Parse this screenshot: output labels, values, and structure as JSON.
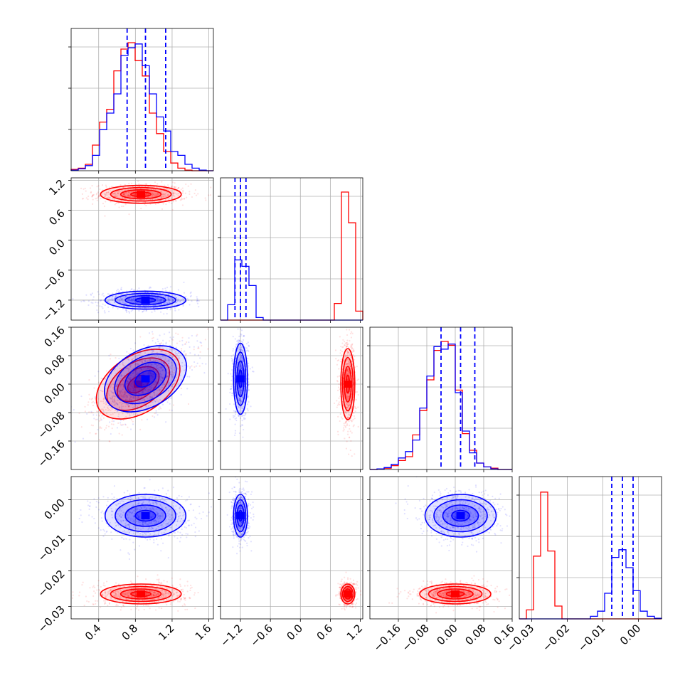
{
  "chart_data": {
    "type": "corner",
    "title": "",
    "series": [
      {
        "name": "",
        "color": "#ff0000"
      },
      {
        "name": "",
        "color": "#0000ff"
      }
    ],
    "quantile_line_color": "#0000ff",
    "grid": true,
    "parameters": [
      {
        "range": [
          0.1,
          1.65
        ],
        "ticks": [
          "0.4",
          "0.8",
          "1.2",
          "1.6"
        ],
        "tick_values": [
          0.4,
          0.8,
          1.2,
          1.6
        ]
      },
      {
        "range": [
          -1.6,
          1.25
        ],
        "ticks": [
          "−1.2",
          "−0.6",
          "0.0",
          "0.6",
          "1.2"
        ],
        "tick_values": [
          -1.2,
          -0.6,
          0.0,
          0.6,
          1.2
        ]
      },
      {
        "range": [
          -0.24,
          0.16
        ],
        "ticks": [
          "−0.16",
          "−0.08",
          "0.00",
          "0.08",
          "0.16"
        ],
        "tick_values": [
          -0.16,
          -0.08,
          0.0,
          0.08,
          0.16
        ]
      },
      {
        "range": [
          -0.0335,
          0.0065
        ],
        "ticks": [
          "−0.03",
          "−0.02",
          "−0.01",
          "0.00"
        ],
        "tick_values": [
          -0.03,
          -0.02,
          -0.01,
          0.0
        ]
      }
    ],
    "quantiles": [
      [
        0.71,
        0.91,
        1.13
      ],
      [
        -1.31,
        -1.2,
        -1.09
      ],
      [
        -0.04,
        0.015,
        0.055
      ],
      [
        -0.0075,
        -0.0045,
        -0.0015
      ]
    ],
    "histograms": [
      {
        "bins": [
          0.1,
          1.65,
          20
        ],
        "red": [
          0.01,
          0.02,
          0.05,
          0.2,
          0.38,
          0.48,
          0.78,
          0.95,
          1.0,
          0.86,
          0.74,
          0.45,
          0.29,
          0.15,
          0.06,
          0.02,
          0.005,
          0,
          0,
          0
        ],
        "blue": [
          0.005,
          0.015,
          0.04,
          0.12,
          0.32,
          0.45,
          0.6,
          0.9,
          0.96,
          0.99,
          0.82,
          0.6,
          0.42,
          0.31,
          0.15,
          0.12,
          0.05,
          0.02,
          0.005,
          0
        ]
      },
      {
        "bins": [
          -1.6,
          1.25,
          20
        ],
        "red": [
          0,
          0,
          0,
          0,
          0,
          0,
          0,
          0,
          0,
          0,
          0,
          0,
          0,
          0,
          0,
          0,
          0.13,
          1.0,
          0.76,
          0.07
        ],
        "blue": [
          0,
          0.12,
          0.47,
          0.42,
          0.27,
          0.02,
          0,
          0,
          0,
          0,
          0,
          0,
          0,
          0,
          0,
          0,
          0,
          0,
          0,
          0
        ]
      },
      {
        "bins": [
          -0.24,
          0.16,
          20
        ],
        "red": [
          0,
          0.005,
          0.01,
          0.03,
          0.07,
          0.1,
          0.27,
          0.46,
          0.7,
          0.93,
          1.0,
          0.97,
          0.62,
          0.28,
          0.15,
          0.05,
          0.02,
          0.01,
          0,
          0
        ],
        "blue": [
          0,
          0.005,
          0.015,
          0.04,
          0.09,
          0.14,
          0.23,
          0.48,
          0.73,
          0.96,
          0.94,
          0.98,
          0.6,
          0.3,
          0.13,
          0.05,
          0.02,
          0.005,
          0,
          0
        ]
      },
      {
        "bins": [
          -0.0335,
          0.0065,
          20
        ],
        "red": [
          0,
          0.07,
          0.49,
          0.99,
          0.53,
          0.1,
          0,
          0,
          0,
          0,
          0,
          0,
          0,
          0,
          0,
          0,
          0,
          0,
          0,
          0
        ],
        "blue": [
          0,
          0,
          0,
          0,
          0,
          0,
          0,
          0,
          0,
          0,
          0.02,
          0.06,
          0.2,
          0.48,
          0.54,
          0.4,
          0.22,
          0.06,
          0.02,
          0.005
        ]
      }
    ],
    "clusters": [
      {
        "i": 1,
        "j": 0,
        "red": {
          "mean": [
            0.86,
            0.92
          ],
          "sd": [
            0.22,
            0.09
          ],
          "rho": 0
        },
        "blue": {
          "mean": [
            0.91,
            -1.2
          ],
          "sd": [
            0.22,
            0.09
          ],
          "rho": 0
        }
      },
      {
        "i": 2,
        "j": 0,
        "red": {
          "mean": [
            0.83,
            0.0
          ],
          "sd": [
            0.23,
            0.05
          ],
          "rho": 0.62
        },
        "blue": {
          "mean": [
            0.91,
            0.015
          ],
          "sd": [
            0.22,
            0.05
          ],
          "rho": 0.55
        }
      },
      {
        "i": 2,
        "j": 1,
        "red": {
          "mean": [
            0.95,
            0.0
          ],
          "sd": [
            0.07,
            0.05
          ],
          "rho": 0
        },
        "blue": {
          "mean": [
            -1.2,
            0.015
          ],
          "sd": [
            0.07,
            0.05
          ],
          "rho": 0
        }
      },
      {
        "i": 3,
        "j": 0,
        "red": {
          "mean": [
            0.86,
            -0.0265
          ],
          "sd": [
            0.22,
            0.0014
          ],
          "rho": 0
        },
        "blue": {
          "mean": [
            0.91,
            -0.0045
          ],
          "sd": [
            0.22,
            0.003
          ],
          "rho": 0
        }
      },
      {
        "i": 3,
        "j": 1,
        "red": {
          "mean": [
            0.95,
            -0.0265
          ],
          "sd": [
            0.07,
            0.0014
          ],
          "rho": 0
        },
        "blue": {
          "mean": [
            -1.2,
            -0.0045
          ],
          "sd": [
            0.07,
            0.003
          ],
          "rho": 0
        }
      },
      {
        "i": 3,
        "j": 2,
        "red": {
          "mean": [
            0.0,
            -0.0265
          ],
          "sd": [
            0.05,
            0.0014
          ],
          "rho": 0
        },
        "blue": {
          "mean": [
            0.015,
            -0.0045
          ],
          "sd": [
            0.05,
            0.003
          ],
          "rho": 0
        }
      }
    ]
  }
}
